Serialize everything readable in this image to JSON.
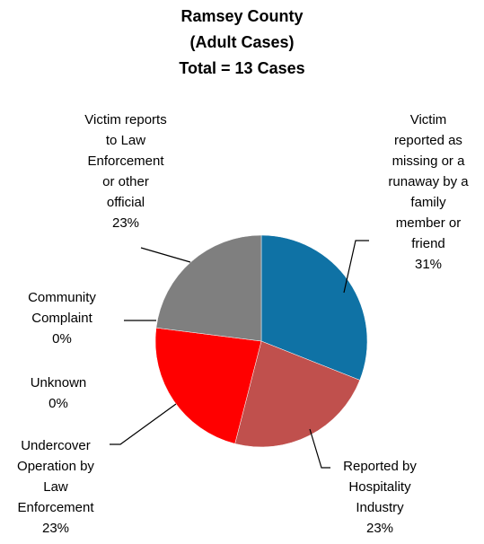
{
  "chart_data": {
    "type": "pie",
    "title": "Ramsey County\n(Adult Cases)\nTotal = 13 Cases",
    "categories": [
      "Victim\nreported as\nmissing or a\nrunaway by a\nfamily\nmember or\nfriend",
      "Reported by\nHospitality\nIndustry",
      "Undercover\nOperation by\nLaw\nEnforcement",
      "Unknown",
      "Community\nComplaint",
      "Victim reports\nto Law\nEnforcement\nor other\nofficial"
    ],
    "values": [
      31,
      23,
      23,
      0,
      0,
      23
    ],
    "value_labels": [
      "31%",
      "23%",
      "23%",
      "0%",
      "0%",
      "23%"
    ],
    "colors": [
      "#0f72a5",
      "#c0504d",
      "#ff0000",
      "#4bacc6",
      "#8064a2",
      "#7f7f7f"
    ]
  }
}
